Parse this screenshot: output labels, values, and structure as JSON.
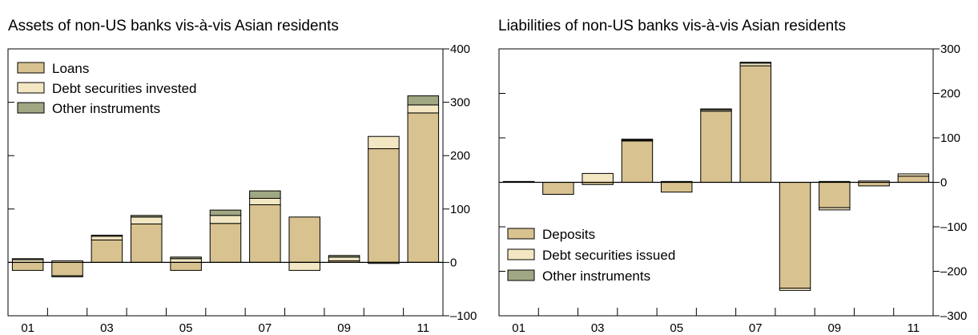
{
  "chart_data": [
    {
      "type": "bar",
      "stacked": true,
      "title": "Assets of non-US banks vis-à-vis Asian residents",
      "x_tick_labels": [
        "01",
        "03",
        "05",
        "07",
        "09",
        "11"
      ],
      "categories": [
        "2001",
        "2002",
        "2003",
        "2004",
        "2005",
        "2006",
        "2007",
        "2008",
        "2009",
        "2010",
        "2011"
      ],
      "ylim": [
        -100,
        400
      ],
      "y_ticks": [
        -100,
        0,
        100,
        200,
        300,
        400
      ],
      "y_tick_labels": [
        "–100",
        "0",
        "100",
        "200",
        "300",
        "400"
      ],
      "y_axis_side": "right",
      "legend_position": "top-left",
      "grid": false,
      "series": [
        {
          "name": "Loans",
          "color": "#d8c28f",
          "values": [
            -15,
            -25,
            42,
            72,
            -15,
            73,
            108,
            85,
            3,
            213,
            280
          ]
        },
        {
          "name": "Debt securities invested",
          "color": "#f3e7c3",
          "values": [
            5,
            3,
            7,
            13,
            7,
            15,
            12,
            -15,
            7,
            23,
            15
          ]
        },
        {
          "name": "Other instruments",
          "color": "#a0a783",
          "values": [
            2,
            -2,
            2,
            3,
            3,
            10,
            14,
            0,
            3,
            -2,
            17
          ]
        }
      ]
    },
    {
      "type": "bar",
      "stacked": true,
      "title": "Liabilities of non-US banks vis-à-vis Asian residents",
      "x_tick_labels": [
        "01",
        "03",
        "05",
        "07",
        "09",
        "11"
      ],
      "categories": [
        "2001",
        "2002",
        "2003",
        "2004",
        "2005",
        "2006",
        "2007",
        "2008",
        "2009",
        "2010",
        "2011"
      ],
      "ylim": [
        -300,
        300
      ],
      "y_ticks": [
        -300,
        -200,
        -100,
        0,
        100,
        200,
        300
      ],
      "y_tick_labels": [
        "–300",
        "–200",
        "–100",
        "0",
        "100",
        "200",
        "300"
      ],
      "y_axis_side": "right",
      "legend_position": "bottom-left",
      "grid": false,
      "series": [
        {
          "name": "Deposits",
          "color": "#d8c28f",
          "values": [
            2,
            -27,
            -5,
            93,
            -22,
            160,
            262,
            -238,
            -57,
            -8,
            14
          ]
        },
        {
          "name": "Debt securities issued",
          "color": "#f3e7c3",
          "values": [
            0,
            0,
            20,
            2,
            2,
            3,
            6,
            -5,
            -5,
            3,
            5
          ]
        },
        {
          "name": "Other instruments",
          "color": "#a0a783",
          "values": [
            0,
            0,
            0,
            2,
            0,
            2,
            2,
            0,
            2,
            0,
            0
          ]
        }
      ]
    }
  ]
}
